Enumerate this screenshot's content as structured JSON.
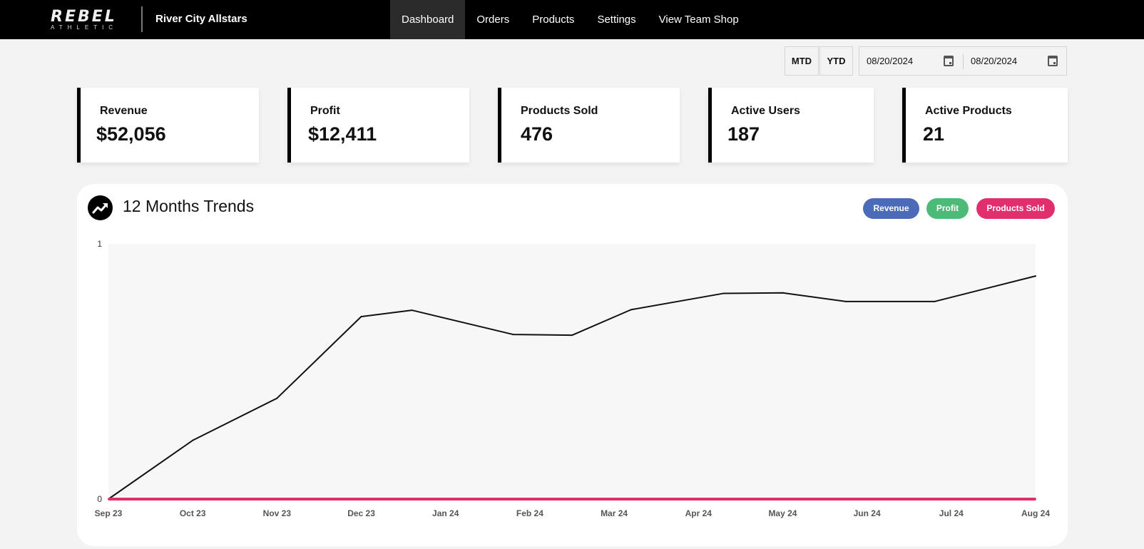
{
  "brand": {
    "logo_main": "REBEL",
    "logo_sub": "ATHLETIC",
    "team_name": "River City Allstars"
  },
  "nav": {
    "items": [
      {
        "label": "Dashboard",
        "active": true
      },
      {
        "label": "Orders"
      },
      {
        "label": "Products"
      },
      {
        "label": "Settings"
      },
      {
        "label": "View Team Shop"
      }
    ]
  },
  "filters": {
    "mtd_label": "MTD",
    "ytd_label": "YTD",
    "start_date": "08/20/2024",
    "end_date": "08/20/2024"
  },
  "stats": [
    {
      "label": "Revenue",
      "value": "$52,056"
    },
    {
      "label": "Profit",
      "value": "$12,411"
    },
    {
      "label": "Products Sold",
      "value": "476"
    },
    {
      "label": "Active Users",
      "value": "187"
    },
    {
      "label": "Active Products",
      "value": "21"
    }
  ],
  "trends": {
    "title": "12 Months Trends",
    "icon": "trending-up-icon",
    "legend": [
      {
        "label": "Revenue",
        "color": "#4a6cb8"
      },
      {
        "label": "Profit",
        "color": "#4bbb77"
      },
      {
        "label": "Products Sold",
        "color": "#e12f6e"
      }
    ]
  },
  "chart_data": {
    "type": "line",
    "title": "12 Months Trends",
    "x": [
      "Sep 23",
      "Oct 23",
      "Nov 23",
      "Dec 23",
      "Jan 24",
      "Feb 24",
      "Mar 24",
      "Apr 24",
      "May 24",
      "Jun 24",
      "Jul 24",
      "Aug 24"
    ],
    "ylim": [
      0,
      1
    ],
    "yticks": [
      0,
      1
    ],
    "grid": false,
    "series": [
      {
        "color": "#111111",
        "points": [
          {
            "x": 0,
            "y": 0
          },
          {
            "x": 1,
            "y": 0.23
          },
          {
            "x": 2,
            "y": 0.395
          },
          {
            "x": 3,
            "y": 0.715
          },
          {
            "x": 3.6,
            "y": 0.74
          },
          {
            "x": 4.8,
            "y": 0.645
          },
          {
            "x": 5.5,
            "y": 0.642
          },
          {
            "x": 6.2,
            "y": 0.742
          },
          {
            "x": 7.3,
            "y": 0.806
          },
          {
            "x": 8,
            "y": 0.808
          },
          {
            "x": 8.75,
            "y": 0.774
          },
          {
            "x": 9.8,
            "y": 0.774
          },
          {
            "x": 11,
            "y": 0.874
          }
        ]
      },
      {
        "color": "#e12f6e",
        "points": [
          {
            "x": 0,
            "y": 0
          },
          {
            "x": 11,
            "y": 0
          }
        ]
      }
    ]
  }
}
